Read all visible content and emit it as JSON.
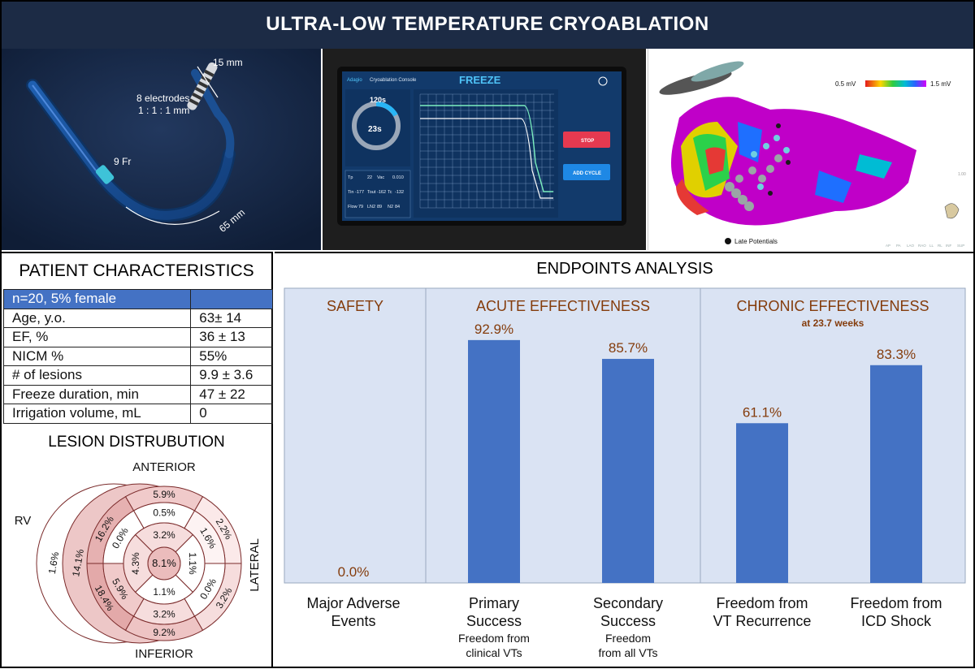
{
  "title": "ULTRA-LOW TEMPERATURE CRYOABLATION",
  "catheter": {
    "length_tip": "15 mm",
    "electrodes_line1": "8 electrodes",
    "electrodes_line2": "1 : 1 : 1 mm",
    "size_fr": "9 Fr",
    "length_curve": "65 mm"
  },
  "console": {
    "brand": "Adagio",
    "name": "Cryoablation Console",
    "mode": "FREEZE",
    "total_time": "120s",
    "elapsed_time": "23s",
    "stop_button": "STOP",
    "add_cycle_button": "ADD CYCLE",
    "readings": [
      {
        "label": "Tp",
        "value": "22"
      },
      {
        "label": "Vac",
        "value": "0.010"
      },
      {
        "label": "Tin",
        "value": "-177"
      },
      {
        "label": "Tout",
        "value": "-162"
      },
      {
        "label": "Tc",
        "value": "-132"
      },
      {
        "label": "Flow",
        "value": "79"
      },
      {
        "label": "LN2",
        "value": "89"
      },
      {
        "label": "N2",
        "value": "84"
      }
    ]
  },
  "map": {
    "scale_min": "0.5 mV",
    "scale_max": "1.5 mV",
    "legend_label": "Late Potentials",
    "toolbar": [
      "AP",
      "PA",
      "LAO",
      "RAO",
      "LL",
      "RL",
      "INF",
      "SUP"
    ],
    "side_value": "1.00"
  },
  "patient": {
    "title": "PATIENT CHARACTERISTICS",
    "header": "n=20, 5% female",
    "rows": [
      {
        "label": "Age, y.o.",
        "value": "63± 14"
      },
      {
        "label": "EF, %",
        "value": "36 ± 13"
      },
      {
        "label": "NICM %",
        "value": "55%"
      },
      {
        "label": "# of lesions",
        "value": "9.9 ± 3.6"
      },
      {
        "label": "Freeze duration, min",
        "value": "47 ± 22"
      },
      {
        "label": "Irrigation volume, mL",
        "value": "0"
      }
    ]
  },
  "lesion": {
    "title": "LESION DISTRUBUTION",
    "anterior": "ANTERIOR",
    "inferior": "INFERIOR",
    "lateral": "LATERAL",
    "rv": "RV",
    "rv_value": "1.6%",
    "center": "8.1%",
    "basal": [
      "5.9%",
      "2.2%",
      "3.2%",
      "9.2%",
      "18.4%",
      "16.2%"
    ],
    "mid": [
      "0.5%",
      "1.6%",
      "0.0%",
      "3.2%",
      "5.9%",
      "0.0%"
    ],
    "apical": [
      "3.2%",
      "1.1%",
      "1.1%",
      "4.3%"
    ],
    "septal_extra": "14.1%"
  },
  "endpoints": {
    "title": "ENDPOINTS ANALYSIS",
    "groups": [
      {
        "label": "SAFETY",
        "sub": ""
      },
      {
        "label": "ACUTE EFFECTIVENESS",
        "sub": ""
      },
      {
        "label": "CHRONIC EFFECTIVENESS",
        "sub": "at 23.7 weeks"
      }
    ],
    "bar_color": "#4472c4",
    "label_color": "#843c0c",
    "panel_color": "#dae3f3"
  },
  "chart_data": {
    "type": "bar",
    "title": "ENDPOINTS ANALYSIS",
    "categories": [
      "Major Adverse Events",
      "Primary Success",
      "Secondary Success",
      "Freedom from VT Recurrence",
      "Freedom from ICD Shock"
    ],
    "category_lines": [
      [
        "Major Adverse",
        "Events"
      ],
      [
        "Primary",
        "Success"
      ],
      [
        "Secondary",
        "Success"
      ],
      [
        "Freedom from",
        "VT Recurrence"
      ],
      [
        "Freedom from",
        "ICD Shock"
      ]
    ],
    "category_sub": [
      [],
      [
        "Freedom from",
        "clinical VTs"
      ],
      [
        "Freedom",
        "from all VTs"
      ],
      [],
      []
    ],
    "values": [
      0.0,
      92.9,
      85.7,
      61.1,
      83.3
    ],
    "value_labels": [
      "0.0%",
      "92.9%",
      "85.7%",
      "61.1%",
      "83.3%"
    ],
    "ylim": [
      0,
      100
    ],
    "xlabel": "",
    "ylabel": ""
  }
}
